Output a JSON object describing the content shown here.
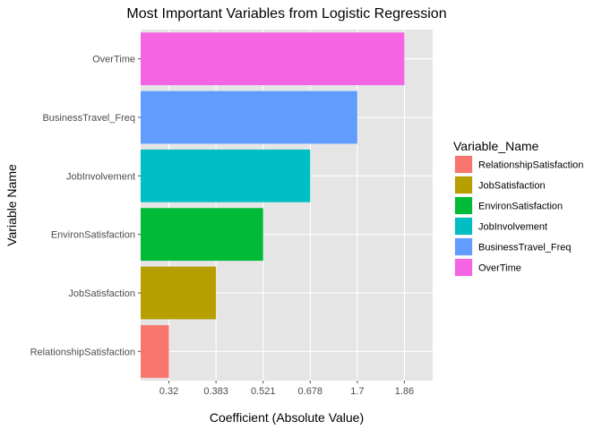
{
  "chart_data": {
    "type": "bar",
    "orientation": "horizontal",
    "title": "Most Important Variables from Logistic Regression",
    "xlabel": "Coefficient (Absolute Value)",
    "ylabel": "Variable Name",
    "categories": [
      "RelationshipSatisfaction",
      "JobSatisfaction",
      "EnvironSatisfaction",
      "JobInvolvement",
      "BusinessTravel_Freq",
      "OverTime"
    ],
    "values": [
      0.32,
      0.383,
      0.521,
      0.678,
      1.7,
      1.86
    ],
    "x_tick_labels": [
      "0.32",
      "0.383",
      "0.521",
      "0.678",
      "1.7",
      "1.86"
    ],
    "x_scale": "discrete-ordered",
    "grid": true,
    "legend": {
      "title": "Variable_Name",
      "placement": "right",
      "entries": [
        "RelationshipSatisfaction",
        "JobSatisfaction",
        "EnvironSatisfaction",
        "JobInvolvement",
        "BusinessTravel_Freq",
        "OverTime"
      ]
    },
    "colors": [
      "#F8766D",
      "#B79F00",
      "#00BA38",
      "#00BFC4",
      "#619CFF",
      "#F564E3"
    ]
  },
  "theme": {
    "panel_background": "#E5E5E5",
    "grid_color": "#FFFFFF",
    "tick_color": "#4D4D4D"
  }
}
